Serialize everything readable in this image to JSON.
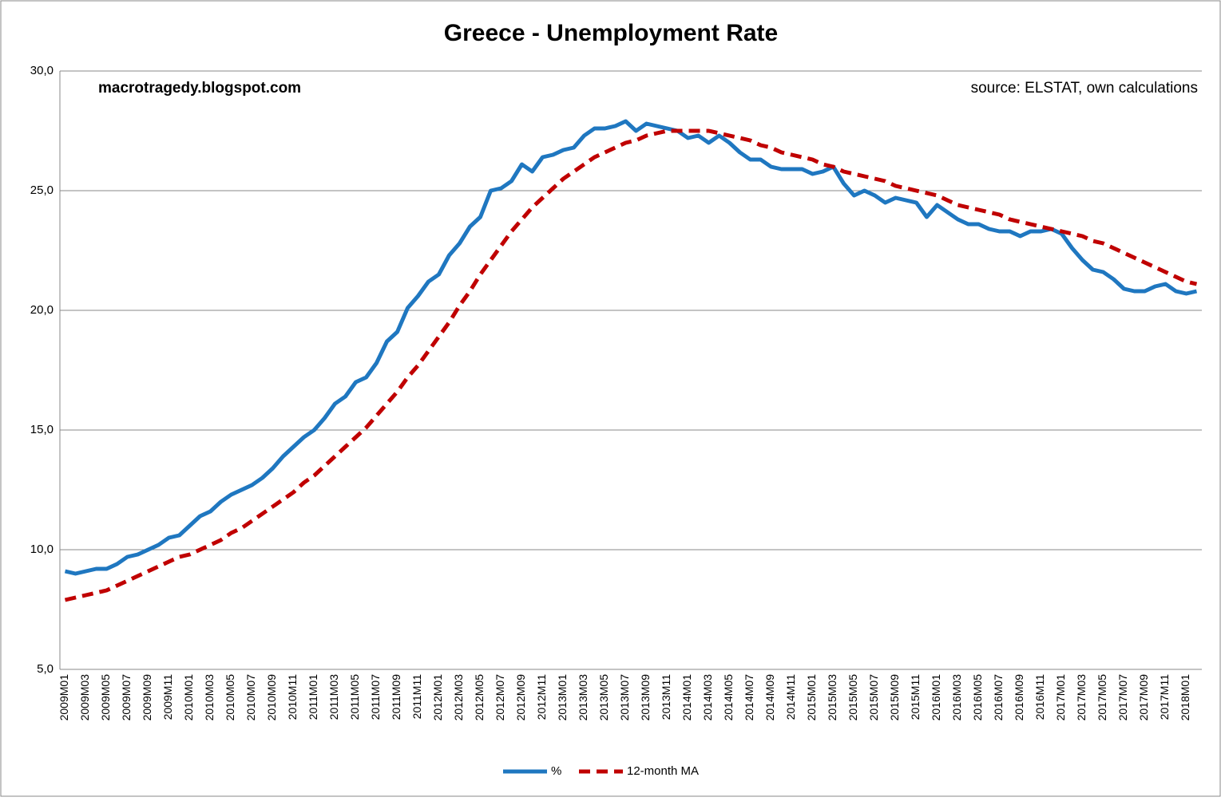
{
  "chart_data": {
    "type": "line",
    "title": "Greece - Unemployment Rate",
    "annotations": [
      "macrotragedy.blogspot.com",
      "source: ELSTAT, own calculations"
    ],
    "categories": [
      "2009M01",
      null,
      "2009M03",
      null,
      "2009M05",
      null,
      "2009M07",
      null,
      "2009M09",
      null,
      "2009M11",
      null,
      "2010M01",
      null,
      "2010M03",
      null,
      "2010M05",
      null,
      "2010M07",
      null,
      "2010M09",
      null,
      "2010M11",
      null,
      "2011M01",
      null,
      "2011M03",
      null,
      "2011M05",
      null,
      "2011M07",
      null,
      "2011M09",
      null,
      "2011M11",
      null,
      "2012M01",
      null,
      "2012M03",
      null,
      "2012M05",
      null,
      "2012M07",
      null,
      "2012M09",
      null,
      "2012M11",
      null,
      "2013M01",
      null,
      "2013M03",
      null,
      "2013M05",
      null,
      "2013M07",
      null,
      "2013M09",
      null,
      "2013M11",
      null,
      "2014M01",
      null,
      "2014M03",
      null,
      "2014M05",
      null,
      "2014M07",
      null,
      "2014M09",
      null,
      "2014M11",
      null,
      "2015M01",
      null,
      "2015M03",
      null,
      "2015M05",
      null,
      "2015M07",
      null,
      "2015M09",
      null,
      "2015M11",
      null,
      "2016M01",
      null,
      "2016M03",
      null,
      "2016M05",
      null,
      "2016M07",
      null,
      "2016M09",
      null,
      "2016M11",
      null,
      "2017M01",
      null,
      "2017M03",
      null,
      "2017M05",
      null,
      "2017M07",
      null,
      "2017M09",
      null,
      "2017M11",
      null,
      "2018M01",
      null
    ],
    "series": [
      {
        "name": "%",
        "color": "#1f77c0",
        "dashed": false,
        "values": [
          9.1,
          9.0,
          9.1,
          9.2,
          9.2,
          9.4,
          9.7,
          9.8,
          10.0,
          10.2,
          10.5,
          10.6,
          11.0,
          11.4,
          11.6,
          12.0,
          12.3,
          12.5,
          12.7,
          13.0,
          13.4,
          13.9,
          14.3,
          14.7,
          15.0,
          15.5,
          16.1,
          16.4,
          17.0,
          17.2,
          17.8,
          18.7,
          19.1,
          20.1,
          20.6,
          21.2,
          21.5,
          22.3,
          22.8,
          23.5,
          23.9,
          25.0,
          25.1,
          25.4,
          26.1,
          25.8,
          26.4,
          26.5,
          26.7,
          26.8,
          27.3,
          27.6,
          27.6,
          27.7,
          27.9,
          27.5,
          27.8,
          27.7,
          27.6,
          27.5,
          27.2,
          27.3,
          27.0,
          27.3,
          27.0,
          26.6,
          26.3,
          26.3,
          26.0,
          25.9,
          25.9,
          25.9,
          25.7,
          25.8,
          26.0,
          25.3,
          24.8,
          25.0,
          24.8,
          24.5,
          24.7,
          24.6,
          24.5,
          23.9,
          24.4,
          24.1,
          23.8,
          23.6,
          23.6,
          23.4,
          23.3,
          23.3,
          23.1,
          23.3,
          23.3,
          23.4,
          23.2,
          22.6,
          22.1,
          21.7,
          21.6,
          21.3,
          20.9,
          20.8,
          20.8,
          21.0,
          21.1,
          20.8,
          20.7,
          20.8
        ]
      },
      {
        "name": "12-month MA",
        "color": "#c00000",
        "dashed": true,
        "values": [
          7.9,
          8.0,
          8.1,
          8.2,
          8.3,
          8.5,
          8.7,
          8.9,
          9.1,
          9.3,
          9.5,
          9.7,
          9.8,
          10.0,
          10.2,
          10.4,
          10.7,
          10.9,
          11.2,
          11.5,
          11.8,
          12.1,
          12.4,
          12.8,
          13.1,
          13.5,
          13.9,
          14.3,
          14.7,
          15.1,
          15.6,
          16.1,
          16.6,
          17.2,
          17.7,
          18.3,
          18.9,
          19.5,
          20.2,
          20.8,
          21.5,
          22.1,
          22.7,
          23.3,
          23.8,
          24.3,
          24.7,
          25.1,
          25.5,
          25.8,
          26.1,
          26.4,
          26.6,
          26.8,
          27.0,
          27.1,
          27.3,
          27.4,
          27.5,
          27.5,
          27.5,
          27.5,
          27.5,
          27.4,
          27.3,
          27.2,
          27.1,
          26.9,
          26.8,
          26.6,
          26.5,
          26.4,
          26.3,
          26.1,
          26.0,
          25.8,
          25.7,
          25.6,
          25.5,
          25.4,
          25.2,
          25.1,
          25.0,
          24.9,
          24.8,
          24.6,
          24.4,
          24.3,
          24.2,
          24.1,
          24.0,
          23.8,
          23.7,
          23.6,
          23.5,
          23.4,
          23.3,
          23.2,
          23.1,
          22.9,
          22.8,
          22.6,
          22.4,
          22.2,
          22.0,
          21.8,
          21.6,
          21.4,
          21.2,
          21.1
        ]
      }
    ],
    "ylim": [
      5,
      30
    ],
    "yticks": [
      {
        "value": 5,
        "label": "5,0"
      },
      {
        "value": 10,
        "label": "10,0"
      },
      {
        "value": 15,
        "label": "15,0"
      },
      {
        "value": 20,
        "label": "20,0"
      },
      {
        "value": 25,
        "label": "25,0"
      },
      {
        "value": 30,
        "label": "30,0"
      }
    ],
    "grid": true,
    "legend": "bottom"
  }
}
